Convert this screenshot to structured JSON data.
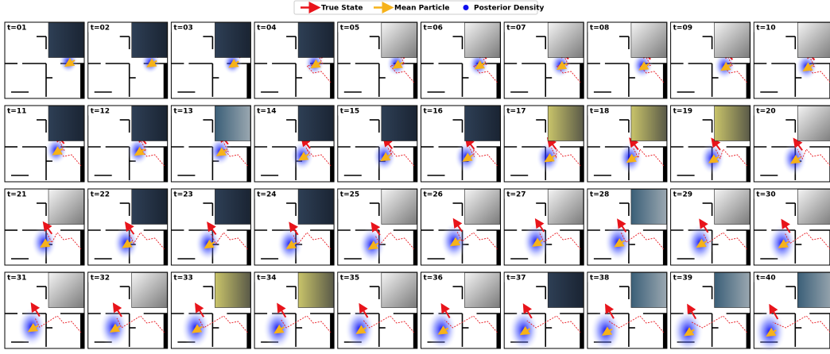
{
  "legend": [
    {
      "label": "True State"
    },
    {
      "label": "Mean Particle"
    },
    {
      "label": "Posterior Density"
    }
  ],
  "panels": [
    {
      "label": "t=01"
    },
    {
      "label": "t=02"
    },
    {
      "label": "t=03"
    },
    {
      "label": "t=04"
    },
    {
      "label": "t=05"
    },
    {
      "label": "t=06"
    },
    {
      "label": "t=07"
    },
    {
      "label": "t=08"
    },
    {
      "label": "t=09"
    },
    {
      "label": "t=10"
    },
    {
      "label": "t=11"
    },
    {
      "label": "t=12"
    },
    {
      "label": "t=13"
    },
    {
      "label": "t=14"
    },
    {
      "label": "t=15"
    },
    {
      "label": "t=16"
    },
    {
      "label": "t=17"
    },
    {
      "label": "t=18"
    },
    {
      "label": "t=19"
    },
    {
      "label": "t=20"
    },
    {
      "label": "t=21"
    },
    {
      "label": "t=22"
    },
    {
      "label": "t=23"
    },
    {
      "label": "t=24"
    },
    {
      "label": "t=25"
    },
    {
      "label": "t=26"
    },
    {
      "label": "t=27"
    },
    {
      "label": "t=28"
    },
    {
      "label": "t=29"
    },
    {
      "label": "t=30"
    },
    {
      "label": "t=31"
    },
    {
      "label": "t=32"
    },
    {
      "label": "t=33"
    },
    {
      "label": "t=34"
    },
    {
      "label": "t=35"
    },
    {
      "label": "t=36"
    },
    {
      "label": "t=37"
    },
    {
      "label": "t=38"
    },
    {
      "label": "t=39"
    },
    {
      "label": "t=40"
    }
  ]
}
